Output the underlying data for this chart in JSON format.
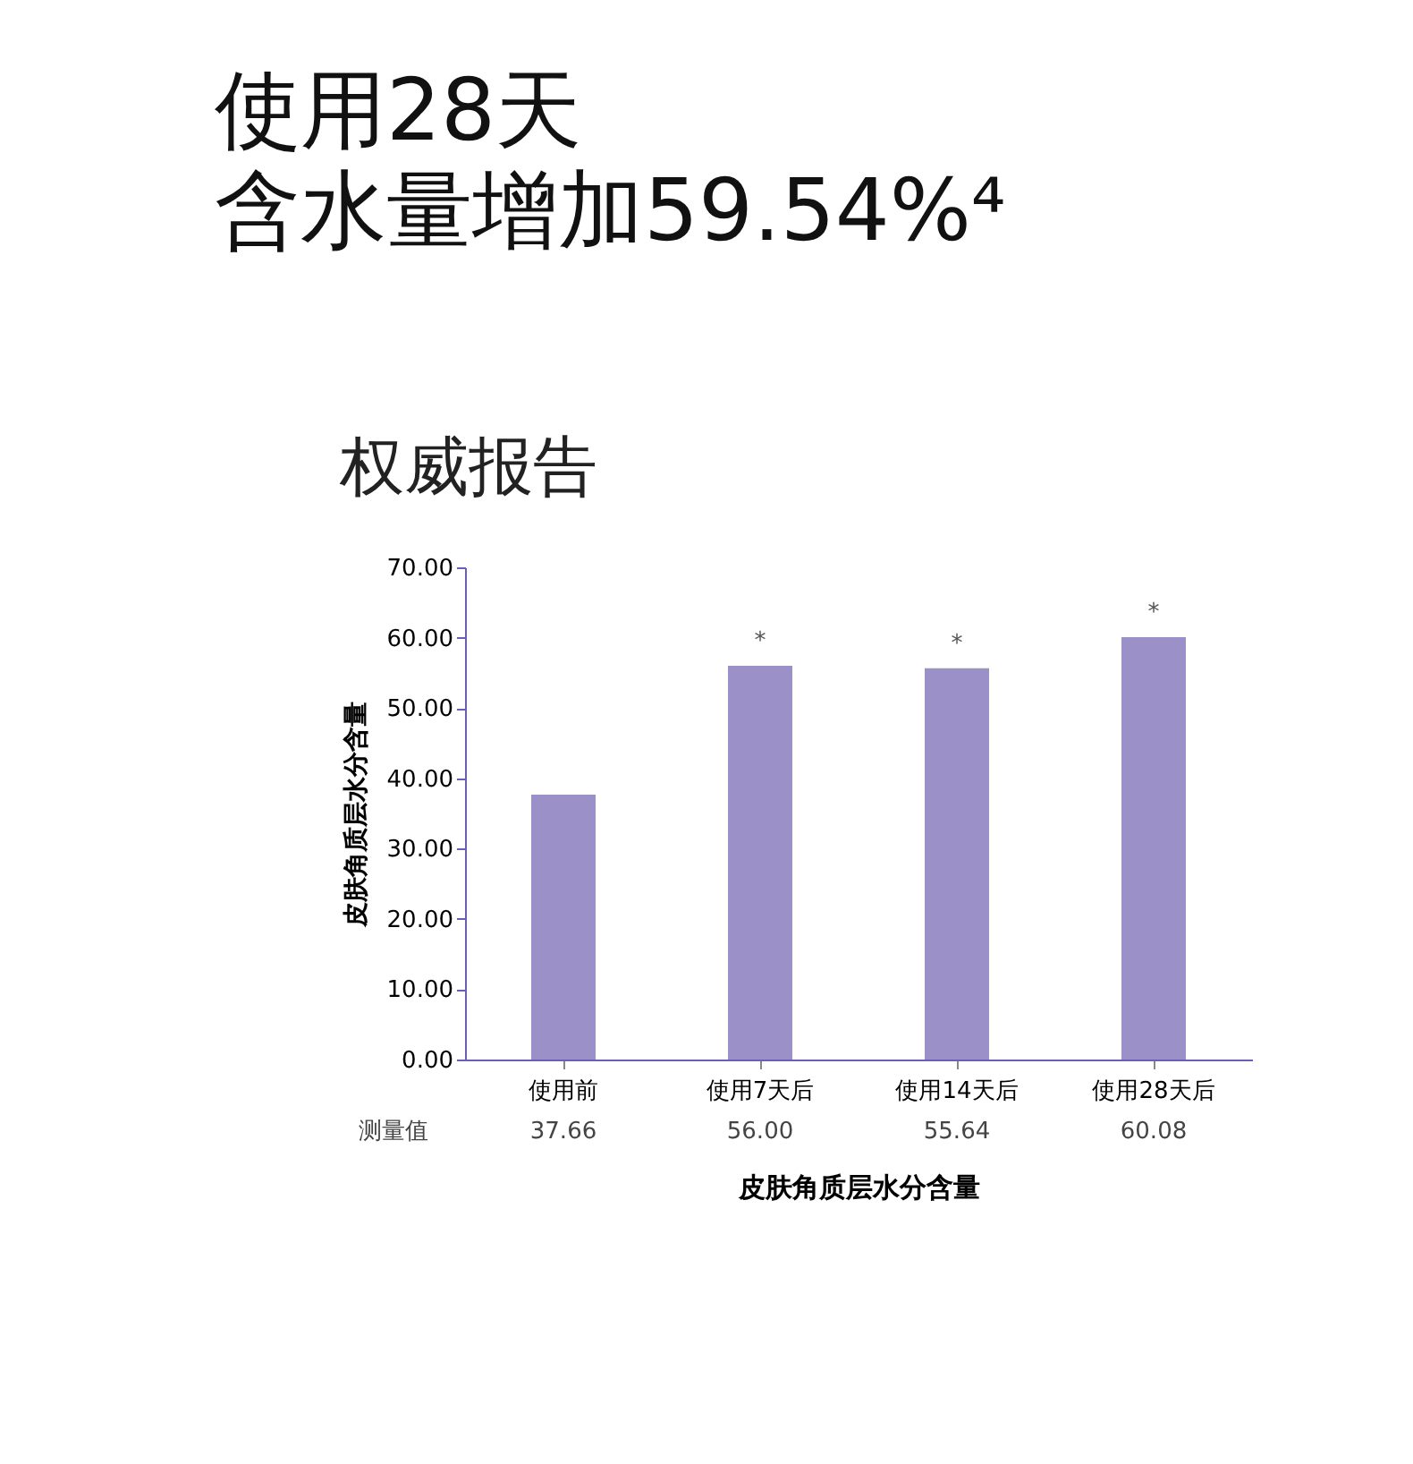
{
  "chart_data": {
    "type": "bar",
    "title": "使用28天",
    "subtitle": "含水量增加59.54%⁴",
    "xlabel": "皮肤角质层水分含量",
    "ylabel": "皮肤角质层水分含量",
    "categories": [
      "使用前",
      "使用7天后",
      "使用14天后",
      "使用28天后"
    ],
    "values": [
      37.66,
      56.0,
      55.64,
      60.08
    ],
    "value_labels": [
      "37.66",
      "56.00",
      "55.64",
      "60.08"
    ],
    "color": "#9b90c8",
    "ylim": [
      0,
      70
    ],
    "yticks": [
      {
        "value": 0,
        "label": "0.00"
      },
      {
        "value": 10,
        "label": "10.00"
      },
      {
        "value": 20,
        "label": "20.00"
      },
      {
        "value": 30,
        "label": "30.00"
      },
      {
        "value": 40,
        "label": "40.00"
      },
      {
        "value": 50,
        "label": "50.00"
      },
      {
        "value": 60,
        "label": "60.00"
      },
      {
        "value": 70,
        "label": "70.00"
      }
    ],
    "grid": false,
    "annotations": [
      "权威报告",
      "测量值",
      "*",
      "*",
      "*"
    ]
  }
}
